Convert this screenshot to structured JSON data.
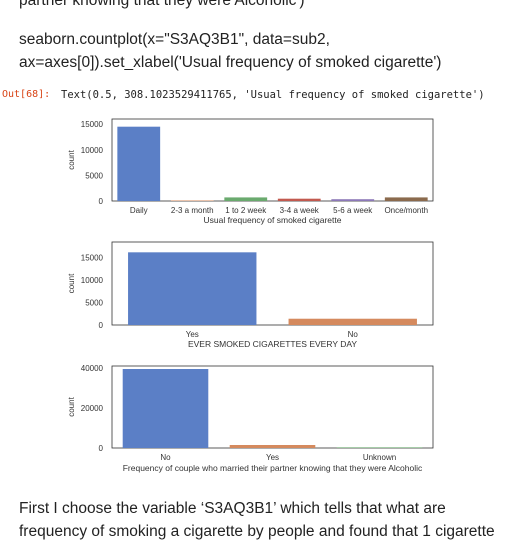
{
  "article": {
    "top_fragment": "partner knowing that they were Alcoholic')",
    "code_line1": "seaborn.countplot(x=\"S3AQ3B1\", data=sub2,",
    "code_line2": "ax=axes[0]).set_xlabel('Usual frequency of smoked cigarette')",
    "out_prompt": "Out[68]:",
    "out_text": "Text(0.5, 308.1023529411765, 'Usual frequency of smoked cigarette')",
    "bottom_line1": "First I choose the variable ‘S3AQ3B1’ which tells that what are",
    "bottom_line2": "frequency of smoking a cigarette by people and found that 1 cigarette"
  },
  "colors": {
    "blue": "#5b7fc6",
    "orange": "#d58a5e",
    "green": "#6aaa6e",
    "red": "#c2594f",
    "purple": "#8c78b8",
    "brown": "#8b6a4d"
  },
  "chart_data": [
    {
      "type": "bar",
      "categories": [
        "Daily",
        "2-3 a month",
        "1 to 2 week",
        "3-4 a week",
        "5-6 a week",
        "Once/month"
      ],
      "values": [
        14500,
        100,
        700,
        450,
        350,
        700
      ],
      "xlabel": "Usual frequency of smoked cigarette",
      "ylabel": "count",
      "yticks": [
        0,
        5000,
        10000,
        15000
      ],
      "ylim": [
        0,
        16000
      ],
      "bar_colors": [
        "#5b7fc6",
        "#d58a5e",
        "#6aaa6e",
        "#c2594f",
        "#8c78b8",
        "#8b6a4d"
      ]
    },
    {
      "type": "bar",
      "categories": [
        "Yes",
        "No"
      ],
      "values": [
        16200,
        1400
      ],
      "xlabel": "EVER SMOKED CIGARETTES EVERY DAY",
      "ylabel": "count",
      "yticks": [
        0,
        5000,
        10000,
        15000
      ],
      "ylim": [
        0,
        18500
      ],
      "bar_colors": [
        "#5b7fc6",
        "#d58a5e"
      ]
    },
    {
      "type": "bar",
      "categories": [
        "No",
        "Yes",
        "Unknown"
      ],
      "values": [
        39500,
        1500,
        300
      ],
      "xlabel": "Frequency of couple who married their partner knowing that they were Alcoholic",
      "ylabel": "count",
      "yticks": [
        0,
        20000,
        40000
      ],
      "ylim": [
        0,
        41000
      ],
      "bar_colors": [
        "#5b7fc6",
        "#d58a5e",
        "#6aaa6e"
      ]
    }
  ]
}
